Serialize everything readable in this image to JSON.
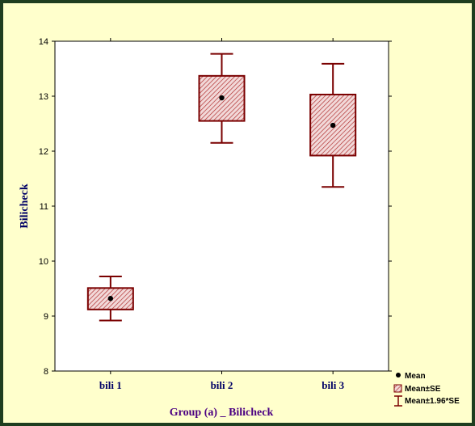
{
  "chart_data": {
    "type": "box",
    "title": "",
    "xlabel": "Group (a) _ Bilicheck",
    "ylabel": "Bilicheck",
    "ylim": [
      8,
      14
    ],
    "yticks": [
      8,
      9,
      10,
      11,
      12,
      13,
      14
    ],
    "categories": [
      "bili 1",
      "bili 2",
      "bili 3"
    ],
    "groups": [
      {
        "category": "bili 1",
        "mean": 9.32,
        "se_low": 9.12,
        "se_high": 9.51,
        "ci_low": 8.92,
        "ci_high": 9.72
      },
      {
        "category": "bili 2",
        "mean": 12.97,
        "se_low": 12.55,
        "se_high": 13.37,
        "ci_low": 12.15,
        "ci_high": 13.77
      },
      {
        "category": "bili 3",
        "mean": 12.47,
        "se_low": 11.92,
        "se_high": 13.03,
        "ci_low": 11.35,
        "ci_high": 13.59
      }
    ],
    "legend": {
      "position": "bottom-right",
      "items": [
        "Mean",
        "Mean±SE",
        "Mean±1.96*SE"
      ]
    },
    "grid": false,
    "colors": {
      "box_stroke": "#7a0000",
      "box_hatch": "#b03030",
      "background": "#ffffcc",
      "plot_bg": "#ffffff",
      "frame": "#1f3d1f"
    }
  }
}
